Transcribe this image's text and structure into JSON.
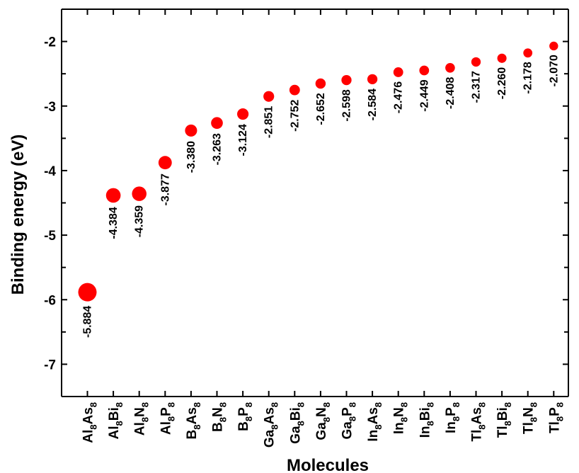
{
  "chart_data": {
    "type": "scatter",
    "xlabel": "Molecules",
    "ylabel": "Binding energy (eV)",
    "ylim": [
      -7.5,
      -1.5
    ],
    "yticks": [
      -2,
      -3,
      -4,
      -5,
      -6,
      -7
    ],
    "ytick_labels": [
      "-2",
      "-3",
      "-4",
      "-5",
      "-6",
      "-7"
    ],
    "grid": false,
    "marker_color": "#ff0000",
    "categories": [
      {
        "a": "Al",
        "a_sub": "8",
        "b": "As",
        "b_sub": "8"
      },
      {
        "a": "Al",
        "a_sub": "8",
        "b": "Bi",
        "b_sub": "8"
      },
      {
        "a": "Al",
        "a_sub": "8",
        "b": "N",
        "b_sub": "8"
      },
      {
        "a": "Al",
        "a_sub": "8",
        "b": "P",
        "b_sub": "8"
      },
      {
        "a": "B",
        "a_sub": "8",
        "b": "As",
        "b_sub": "8"
      },
      {
        "a": "B",
        "a_sub": "8",
        "b": "N",
        "b_sub": "8"
      },
      {
        "a": "B",
        "a_sub": "8",
        "b": "P",
        "b_sub": "8"
      },
      {
        "a": "Ga",
        "a_sub": "8",
        "b": "As",
        "b_sub": "8"
      },
      {
        "a": "Ga",
        "a_sub": "8",
        "b": "Bi",
        "b_sub": "8"
      },
      {
        "a": "Ga",
        "a_sub": "8",
        "b": "N",
        "b_sub": "8"
      },
      {
        "a": "Ga",
        "a_sub": "8",
        "b": "P",
        "b_sub": "8"
      },
      {
        "a": "In",
        "a_sub": "8",
        "b": "As",
        "b_sub": "8"
      },
      {
        "a": "In",
        "a_sub": "8",
        "b": "N",
        "b_sub": "8"
      },
      {
        "a": "In",
        "a_sub": "8",
        "b": "Bi",
        "b_sub": "8"
      },
      {
        "a": "In",
        "a_sub": "8",
        "b": "P",
        "b_sub": "8"
      },
      {
        "a": "Tl",
        "a_sub": "8",
        "b": "As",
        "b_sub": "8"
      },
      {
        "a": "Tl",
        "a_sub": "8",
        "b": "Bi",
        "b_sub": "8"
      },
      {
        "a": "Tl",
        "a_sub": "8",
        "b": "N",
        "b_sub": "8"
      },
      {
        "a": "Tl",
        "a_sub": "8",
        "b": "P",
        "b_sub": "8"
      }
    ],
    "values": [
      -5.884,
      -4.384,
      -4.359,
      -3.877,
      -3.38,
      -3.263,
      -3.124,
      -2.851,
      -2.752,
      -2.652,
      -2.598,
      -2.584,
      -2.476,
      -2.449,
      -2.408,
      -2.317,
      -2.26,
      -2.178,
      -2.07
    ],
    "data_labels": [
      "-5.884",
      "-4.384",
      "-4.359",
      "-3.877",
      "-3.380",
      "-3.263",
      "-3.124",
      "-2.851",
      "-2.752",
      "-2.652",
      "-2.598",
      "-2.584",
      "-2.476",
      "-2.449",
      "-2.408",
      "-2.317",
      "-2.260",
      "-2.178",
      "-2.070"
    ]
  }
}
